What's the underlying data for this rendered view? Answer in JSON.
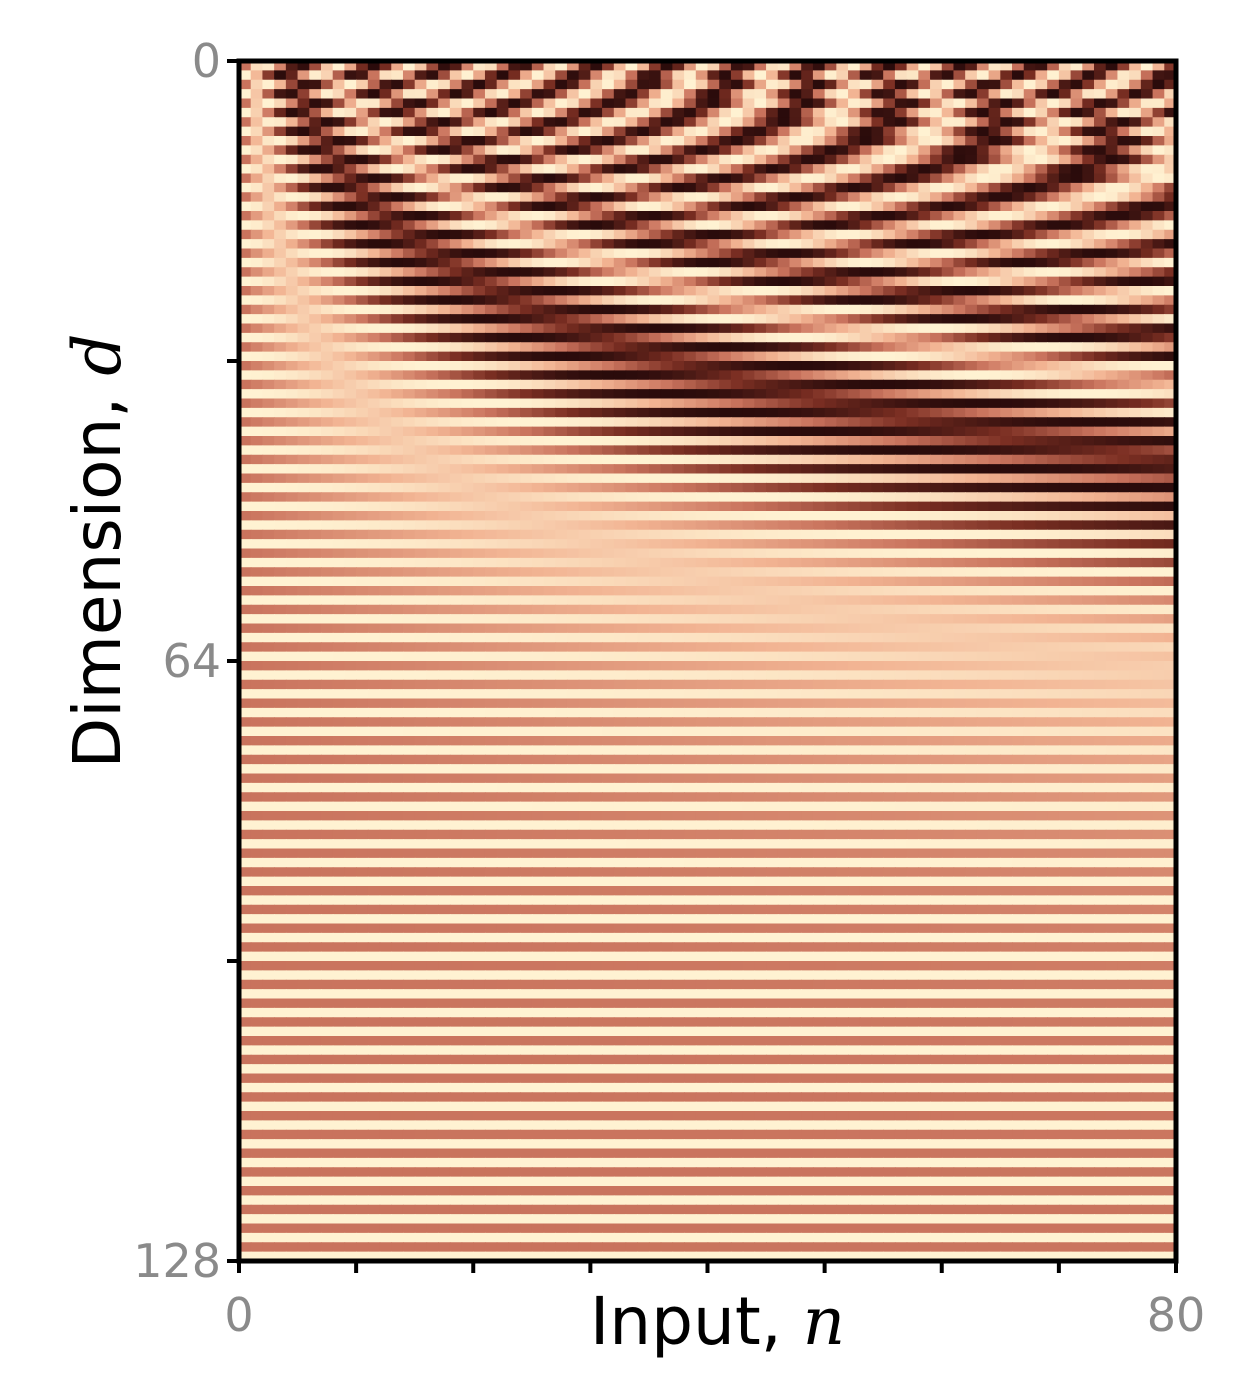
{
  "chart_data": {
    "type": "heatmap",
    "description_kind": "positional-encoding",
    "x": {
      "label_text": "Input, ",
      "label_var": "n",
      "range": [
        0,
        80
      ],
      "tick_labels": [
        "0",
        "80"
      ],
      "tick_values": [
        0,
        10,
        20,
        30,
        40,
        50,
        60,
        70,
        80
      ]
    },
    "y": {
      "label_text": "Dimension, ",
      "label_var": "d",
      "range": [
        0,
        128
      ],
      "inverted": true,
      "tick_labels": [
        "0",
        "64",
        "128"
      ],
      "tick_values": [
        0,
        32,
        64,
        96,
        128
      ]
    },
    "grid": false,
    "legend": "none",
    "colormap": {
      "dark": "#2a0b0b",
      "mid_dark": "#7a2e22",
      "mid": "#c9735d",
      "light": "#f2b493",
      "lightest": "#fff2d2"
    },
    "colors": {
      "frame": "#000000",
      "tick_text": "#8a8a8a"
    }
  }
}
